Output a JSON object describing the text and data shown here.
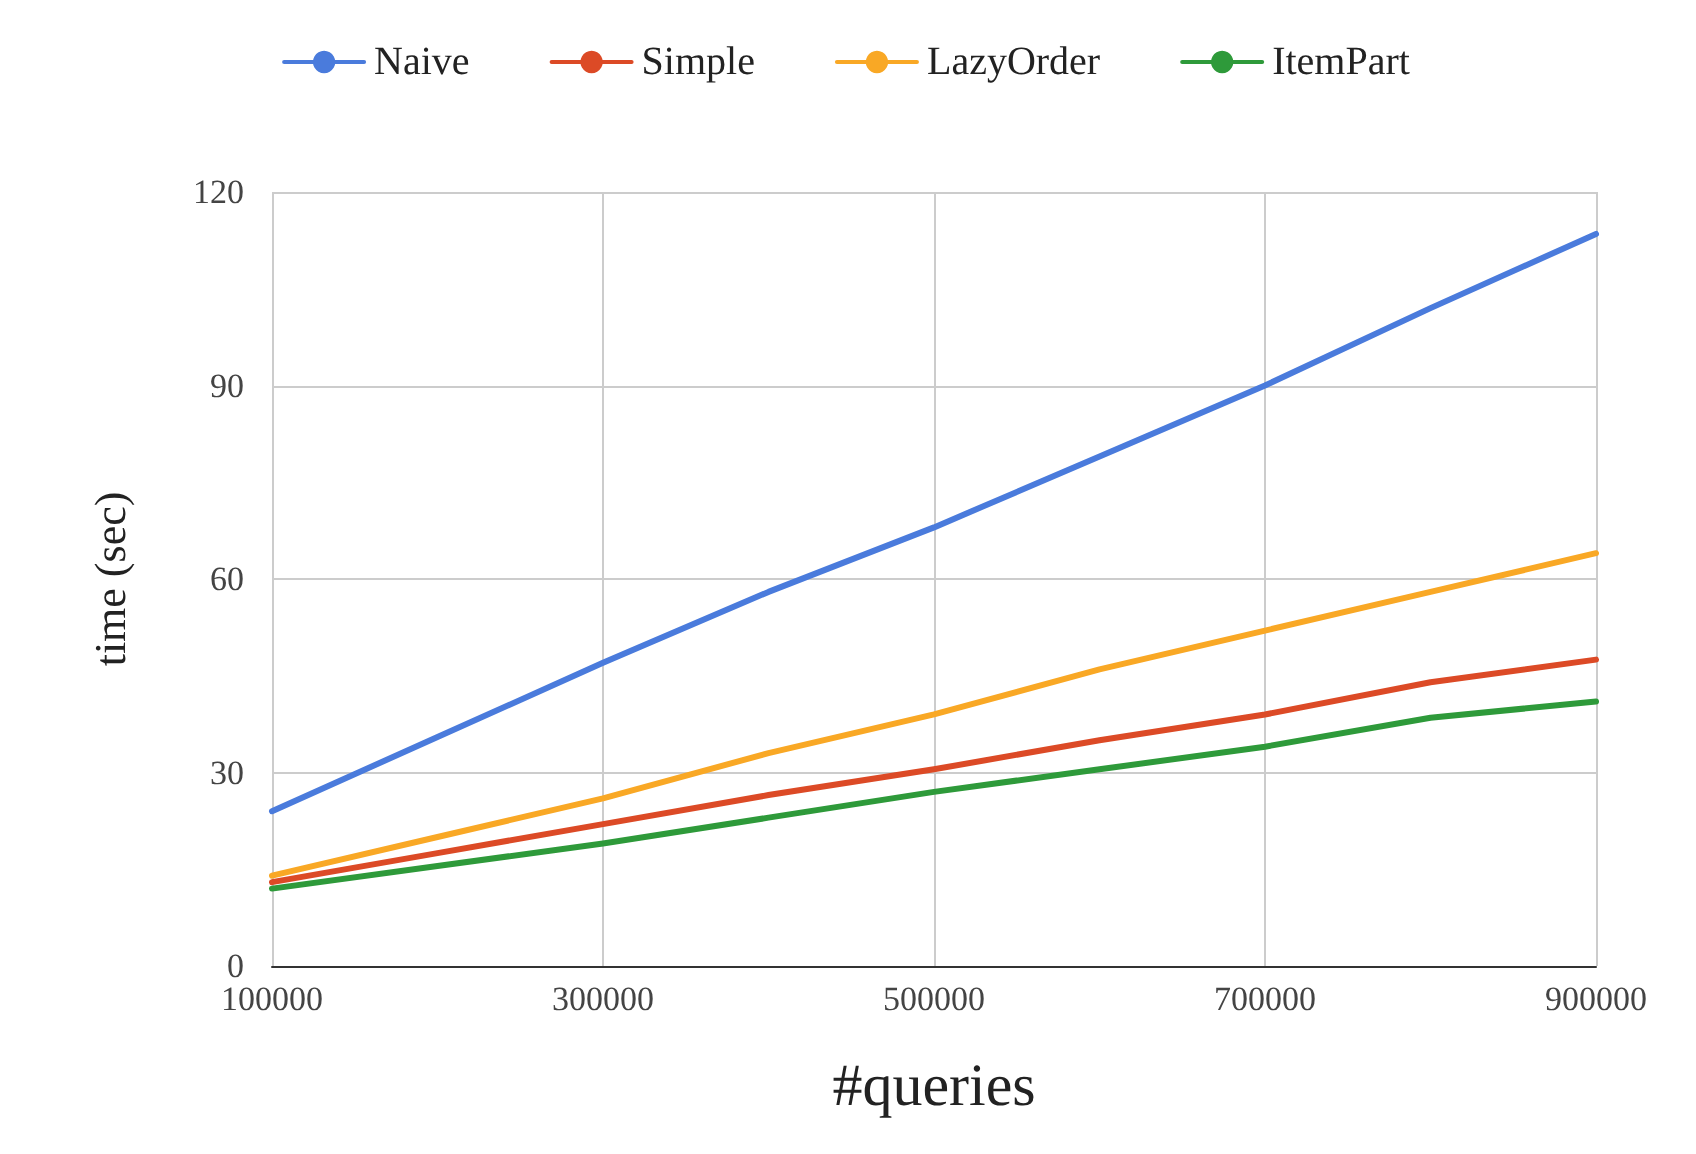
{
  "chart_data": {
    "type": "line",
    "xlabel": "#queries",
    "ylabel": "time (sec)",
    "x": [
      100000,
      200000,
      300000,
      400000,
      500000,
      600000,
      700000,
      800000,
      900000
    ],
    "series": [
      {
        "name": "Naive",
        "color": "#4a7bdc",
        "values": [
          24,
          35.5,
          47,
          58,
          68,
          79,
          90,
          102,
          113.5
        ]
      },
      {
        "name": "Simple",
        "color": "#dc4a26",
        "values": [
          13,
          17.5,
          22,
          26.5,
          30.5,
          35,
          39,
          44,
          47.5
        ]
      },
      {
        "name": "LazyOrder",
        "color": "#f9a825",
        "values": [
          14,
          20,
          26,
          33,
          39,
          46,
          52,
          58,
          64
        ]
      },
      {
        "name": "ItemPart",
        "color": "#2e9a3a",
        "values": [
          12,
          15.5,
          19,
          23,
          27,
          30.5,
          34,
          38.5,
          41
        ]
      }
    ],
    "xlim": [
      100000,
      900000
    ],
    "xticks": [
      100000,
      300000,
      500000,
      700000,
      900000
    ],
    "ylim": [
      0,
      120
    ],
    "yticks": [
      0,
      30,
      60,
      90,
      120
    ],
    "grid": true,
    "legend": "top"
  }
}
